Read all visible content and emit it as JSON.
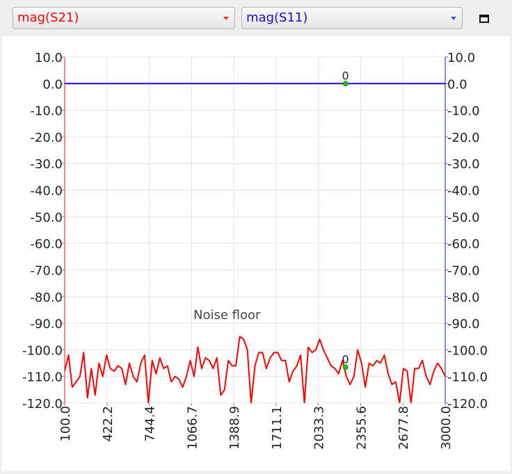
{
  "toolbar": {
    "trace1_select": {
      "value": "mag(S21)",
      "color": "#ff0000"
    },
    "trace2_select": {
      "value": "mag(S11)",
      "color": "#2200dd"
    },
    "maximize_icon": "window-maximize-icon"
  },
  "chart_data": {
    "type": "line",
    "annotation": "Noise floor",
    "x_ticks": [
      "100.0",
      "422.2",
      "744.4",
      "1066.7",
      "1388.9",
      "1711.1",
      "2033.3",
      "2355.6",
      "2677.8",
      "3000.0"
    ],
    "y_ticks": [
      "10.0",
      "0.0",
      "-10.0",
      "-20.0",
      "-30.0",
      "-40.0",
      "-50.0",
      "-60.0",
      "-70.0",
      "-80.0",
      "-90.0",
      "-100.0",
      "-110.0",
      "-120.0"
    ],
    "xlim": [
      100,
      3000
    ],
    "ylim": [
      -120,
      10
    ],
    "grid": true,
    "left_axis_color": "#ff6060",
    "right_axis_color": "#6060ff",
    "marker_color": "#22bb22",
    "series": [
      {
        "color": "#ff0000",
        "axis": "left",
        "x": [
          100,
          129,
          158,
          187,
          216,
          245,
          274,
          303,
          332,
          361,
          390,
          419,
          448,
          477,
          506,
          535,
          564,
          593,
          622,
          651,
          680,
          709,
          738,
          767,
          796,
          825,
          854,
          883,
          912,
          941,
          970,
          999,
          1028,
          1057,
          1086,
          1115,
          1144,
          1173,
          1202,
          1231,
          1260,
          1289,
          1318,
          1347,
          1376,
          1405,
          1434,
          1463,
          1492,
          1521,
          1550,
          1579,
          1608,
          1637,
          1666,
          1695,
          1724,
          1753,
          1782,
          1811,
          1840,
          1869,
          1898,
          1927,
          1956,
          1985,
          2014,
          2043,
          2072,
          2101,
          2130,
          2159,
          2188,
          2217,
          2246,
          2275,
          2304,
          2333,
          2362,
          2391,
          2420,
          2449,
          2478,
          2507,
          2536,
          2565,
          2594,
          2623,
          2652,
          2681,
          2710,
          2739,
          2768,
          2797,
          2826,
          2855,
          2884,
          2913,
          2942,
          2971,
          3000
        ],
        "y": [
          -108,
          -102,
          -114,
          -112,
          -110,
          -101,
          -118,
          -107,
          -117,
          -105,
          -110,
          -102,
          -107,
          -108,
          -106,
          -107,
          -113,
          -105,
          -110,
          -112,
          -105,
          -102,
          -120,
          -104,
          -109,
          -103,
          -107,
          -106,
          -112,
          -110,
          -111,
          -114,
          -110,
          -104,
          -110,
          -99,
          -107,
          -103,
          -104,
          -107,
          -103,
          -117,
          -115,
          -104,
          -106,
          -106,
          -95,
          -96,
          -100,
          -120,
          -106,
          -101,
          -101,
          -107,
          -103,
          -101,
          -101,
          -104,
          -104,
          -112,
          -108,
          -106,
          -102,
          -120,
          -99,
          -101,
          -100,
          -96,
          -100,
          -103,
          -106,
          -107,
          -109,
          -104,
          -110,
          -113,
          -110,
          -100,
          -105,
          -114,
          -105,
          -106,
          -104,
          -105,
          -102,
          -109,
          -113,
          -112,
          -120,
          -107,
          -108,
          -120,
          -107,
          -107,
          -104,
          -110,
          -113,
          -108,
          -105,
          -107,
          -110
        ]
      },
      {
        "color": "#2200dd",
        "axis": "right",
        "x": [
          100,
          3000
        ],
        "y": [
          0,
          0
        ]
      }
    ],
    "markers": [
      {
        "label": "0",
        "x": 2240,
        "y": 0,
        "series": 1
      },
      {
        "label": "0",
        "x": 2240,
        "y": -106.5,
        "series": 0
      }
    ]
  }
}
